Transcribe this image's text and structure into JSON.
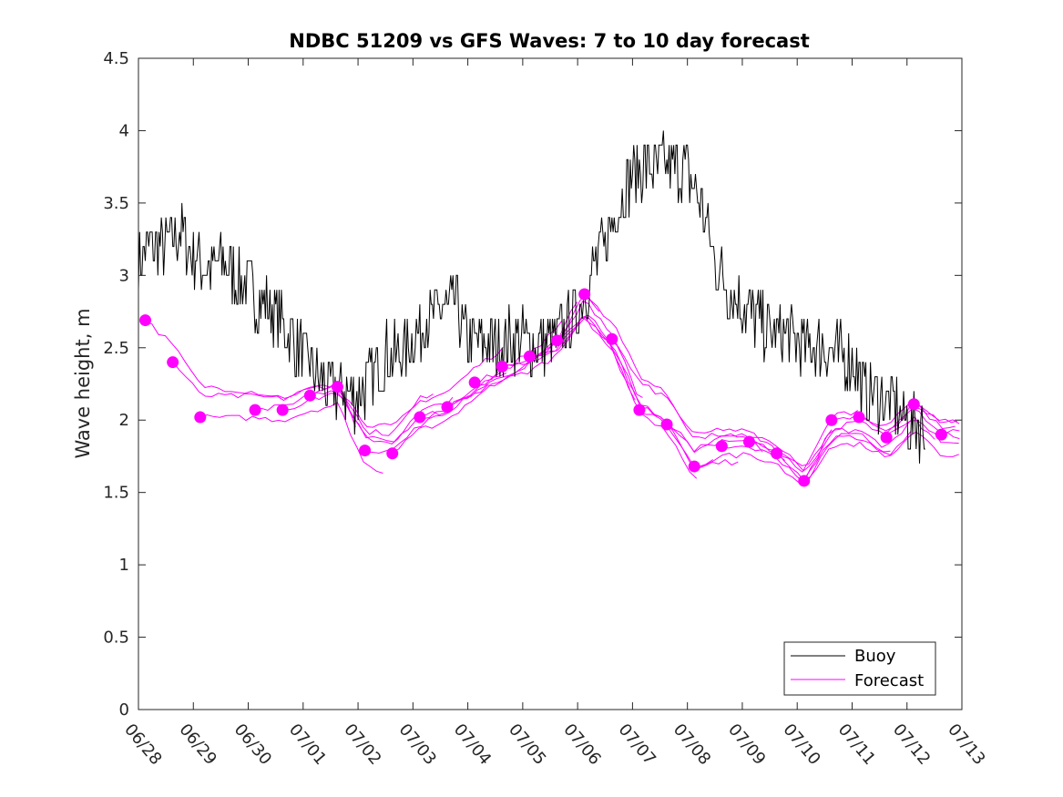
{
  "chart_data": {
    "type": "line",
    "title": "NDBC 51209 vs GFS Waves: 7 to 10 day forecast",
    "xlabel": "",
    "ylabel": "Wave height, m",
    "xlim": [
      "06/28",
      "07/13"
    ],
    "ylim": [
      0,
      4.5
    ],
    "x_tick_labels": [
      "06/28",
      "06/29",
      "06/30",
      "07/01",
      "07/02",
      "07/03",
      "07/04",
      "07/05",
      "07/06",
      "07/07",
      "07/08",
      "07/09",
      "07/10",
      "07/11",
      "07/12",
      "07/13"
    ],
    "y_ticks": [
      0,
      0.5,
      1,
      1.5,
      2,
      2.5,
      3,
      3.5,
      4,
      4.5
    ],
    "y_tick_labels": [
      "0",
      "0.5",
      "1",
      "1.5",
      "2",
      "2.5",
      "3",
      "3.5",
      "4",
      "4.5"
    ],
    "x_unit": "days since 06/28 00:00",
    "grid": false,
    "legend": {
      "position": "bottom-right",
      "entries": [
        "Buoy",
        "Forecast"
      ]
    },
    "colors": {
      "buoy": "#000000",
      "forecast": "#ff00ff"
    },
    "series": [
      {
        "name": "Buoy",
        "x": [
          0,
          0.25,
          0.5,
          0.75,
          1.0,
          1.25,
          1.5,
          1.75,
          2.0,
          2.25,
          2.5,
          2.75,
          3.0,
          3.25,
          3.5,
          3.75,
          4.0,
          4.25,
          4.5,
          4.75,
          5.0,
          5.25,
          5.5,
          5.75,
          6.0,
          6.25,
          6.5,
          6.75,
          7.0,
          7.25,
          7.5,
          7.75,
          8.0,
          8.25,
          8.5,
          8.75,
          9.0,
          9.25,
          9.5,
          9.75,
          10.0,
          10.25,
          10.5,
          10.75,
          11.0,
          11.25,
          11.5,
          11.75,
          12.0,
          12.25,
          12.5,
          12.75,
          13.0,
          13.25,
          13.5,
          13.75,
          14.0,
          14.25,
          14.35
        ],
        "values": [
          3.1,
          3.2,
          3.2,
          3.3,
          3.15,
          3.05,
          3.1,
          3.0,
          2.9,
          2.8,
          2.75,
          2.6,
          2.45,
          2.3,
          2.2,
          2.2,
          2.15,
          2.3,
          2.45,
          2.45,
          2.55,
          2.7,
          2.75,
          2.8,
          2.55,
          2.55,
          2.5,
          2.55,
          2.55,
          2.5,
          2.55,
          2.6,
          2.75,
          3.0,
          3.2,
          3.5,
          3.7,
          3.75,
          3.75,
          3.75,
          3.7,
          3.5,
          3.1,
          2.9,
          2.8,
          2.7,
          2.6,
          2.6,
          2.55,
          2.5,
          2.5,
          2.45,
          2.4,
          2.2,
          2.15,
          2.1,
          2.0,
          1.95,
          1.95
        ]
      },
      {
        "name": "Forecast",
        "markers": {
          "x": [
            0.125,
            0.625,
            1.125,
            2.125,
            2.625,
            3.125,
            3.625,
            4.125,
            4.625,
            5.125,
            5.625,
            6.125,
            6.625,
            7.125,
            7.625,
            8.125,
            8.625,
            9.125,
            9.625,
            10.125,
            10.625,
            11.125,
            11.625,
            12.125,
            12.625,
            13.125,
            13.625,
            14.125,
            14.625
          ],
          "values": [
            2.69,
            2.4,
            2.02,
            2.07,
            2.07,
            2.17,
            2.23,
            1.79,
            1.77,
            2.02,
            2.09,
            2.26,
            2.37,
            2.44,
            2.55,
            2.87,
            2.56,
            2.07,
            1.97,
            1.68,
            1.82,
            1.85,
            1.77,
            1.58,
            2.0,
            2.02,
            1.88,
            2.11,
            1.9
          ]
        }
      }
    ]
  }
}
